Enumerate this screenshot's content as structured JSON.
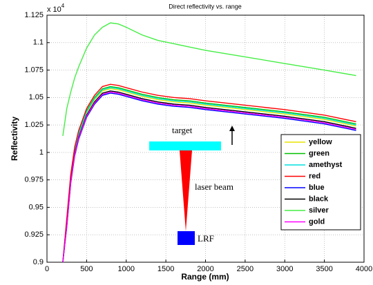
{
  "chart_data": {
    "type": "line",
    "title": "Direct reflectivity vs. range",
    "x_label": "Range (mm)",
    "y_label": "Reflectivity",
    "y_multiplier": "x 10",
    "y_multiplier_exponent": "4",
    "x": [
      200,
      250,
      300,
      350,
      400,
      500,
      600,
      700,
      800,
      900,
      1000,
      1200,
      1400,
      1600,
      1800,
      2000,
      2500,
      3000,
      3500,
      3900
    ],
    "series": [
      {
        "name": "yellow",
        "color": "#e6e600",
        "values": [
          0.9,
          0.936,
          0.976,
          1.001,
          1.016,
          1.036,
          1.048,
          1.056,
          1.058,
          1.057,
          1.055,
          1.051,
          1.048,
          1.046,
          1.045,
          1.043,
          1.039,
          1.035,
          1.03,
          1.024
        ]
      },
      {
        "name": "green",
        "color": "#00c000",
        "values": [
          0.9,
          0.938,
          0.978,
          1.003,
          1.018,
          1.038,
          1.05,
          1.058,
          1.06,
          1.059,
          1.057,
          1.053,
          1.05,
          1.048,
          1.047,
          1.045,
          1.041,
          1.037,
          1.032,
          1.026
        ]
      },
      {
        "name": "amethyst",
        "color": "#00e0e0",
        "values": [
          0.9,
          0.937,
          0.977,
          1.002,
          1.017,
          1.037,
          1.049,
          1.057,
          1.059,
          1.058,
          1.056,
          1.052,
          1.049,
          1.047,
          1.046,
          1.044,
          1.04,
          1.036,
          1.031,
          1.025
        ]
      },
      {
        "name": "red",
        "color": "#ff0000",
        "values": [
          0.9,
          0.94,
          0.98,
          1.005,
          1.02,
          1.04,
          1.052,
          1.06,
          1.062,
          1.061,
          1.059,
          1.055,
          1.052,
          1.05,
          1.049,
          1.047,
          1.043,
          1.039,
          1.034,
          1.028
        ]
      },
      {
        "name": "blue",
        "color": "#0000ff",
        "values": [
          0.9,
          0.932,
          0.972,
          0.997,
          1.012,
          1.032,
          1.044,
          1.052,
          1.054,
          1.053,
          1.051,
          1.047,
          1.044,
          1.042,
          1.041,
          1.039,
          1.035,
          1.031,
          1.026,
          1.02
        ]
      },
      {
        "name": "black",
        "color": "#000000",
        "values": [
          0.9,
          0.934,
          0.974,
          0.999,
          1.014,
          1.034,
          1.046,
          1.054,
          1.056,
          1.055,
          1.053,
          1.049,
          1.046,
          1.044,
          1.043,
          1.041,
          1.037,
          1.033,
          1.028,
          1.022
        ]
      },
      {
        "name": "silver",
        "color": "#44ee44",
        "values": [
          1.015,
          1.04,
          1.055,
          1.068,
          1.078,
          1.095,
          1.107,
          1.114,
          1.118,
          1.117,
          1.114,
          1.107,
          1.102,
          1.099,
          1.096,
          1.093,
          1.087,
          1.081,
          1.075,
          1.07
        ]
      },
      {
        "name": "gold",
        "color": "#ff00ff",
        "values": [
          0.9,
          0.933,
          0.973,
          0.998,
          1.013,
          1.033,
          1.045,
          1.053,
          1.055,
          1.054,
          1.052,
          1.048,
          1.045,
          1.043,
          1.042,
          1.04,
          1.036,
          1.032,
          1.027,
          1.021
        ]
      }
    ],
    "xlim": [
      0,
      4000
    ],
    "xticks": [
      0,
      500,
      1000,
      1500,
      2000,
      2500,
      3000,
      3500,
      4000
    ],
    "ylim": [
      0.9,
      1.125
    ],
    "yticks": [
      0.9,
      0.925,
      0.95,
      0.975,
      1,
      1.025,
      1.05,
      1.075,
      1.1,
      1.125
    ],
    "grid": true,
    "legend": "right",
    "annotations": [
      "target",
      "laser beam",
      "LRF"
    ]
  }
}
